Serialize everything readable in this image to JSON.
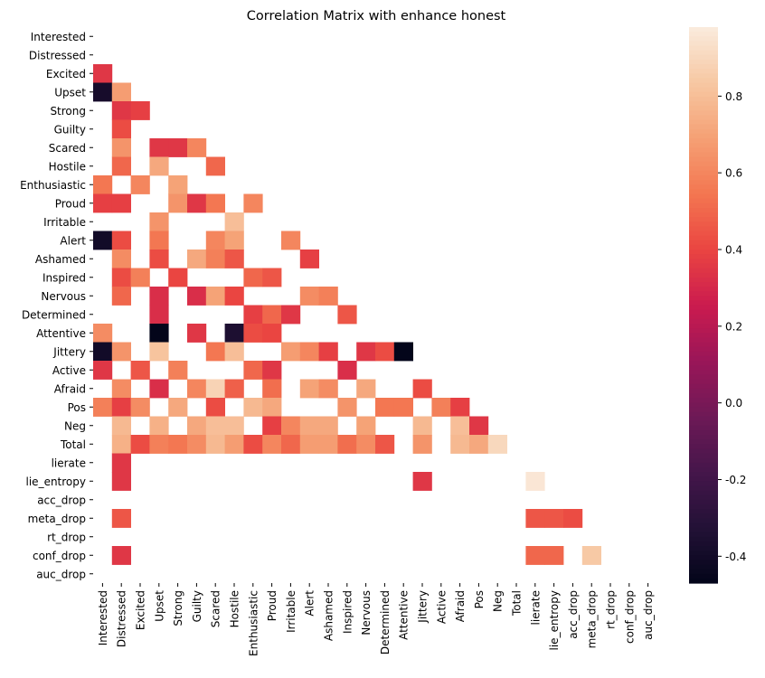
{
  "chart_data": {
    "type": "heatmap",
    "title": "Correlation Matrix with enhance honest",
    "xlabel": "",
    "ylabel": "",
    "labels": [
      "Interested",
      "Distressed",
      "Excited",
      "Upset",
      "Strong",
      "Guilty",
      "Scared",
      "Hostile",
      "Enthusiastic",
      "Proud",
      "Irritable",
      "Alert",
      "Ashamed",
      "Inspired",
      "Nervous",
      "Determined",
      "Attentive",
      "Jittery",
      "Active",
      "Afraid",
      "Pos",
      "Neg",
      "Total",
      "lierate",
      "lie_entropy",
      "acc_drop",
      "meta_drop",
      "rt_drop",
      "conf_drop",
      "auc_drop"
    ],
    "masked": "upper triangle and diagonal; only significant correlations shown",
    "colorscale": "rocket",
    "vmin": -0.47,
    "vmax": 0.98,
    "colorbar_ticks": [
      -0.4,
      -0.2,
      0.0,
      0.2,
      0.4,
      0.6,
      0.8
    ],
    "cells": [
      {
        "row": "Excited",
        "col": "Interested",
        "value": 0.35
      },
      {
        "row": "Upset",
        "col": "Interested",
        "value": -0.38
      },
      {
        "row": "Upset",
        "col": "Distressed",
        "value": 0.68
      },
      {
        "row": "Strong",
        "col": "Distressed",
        "value": 0.35
      },
      {
        "row": "Strong",
        "col": "Excited",
        "value": 0.38
      },
      {
        "row": "Guilty",
        "col": "Distressed",
        "value": 0.42
      },
      {
        "row": "Scared",
        "col": "Distressed",
        "value": 0.65
      },
      {
        "row": "Scared",
        "col": "Upset",
        "value": 0.35
      },
      {
        "row": "Scared",
        "col": "Strong",
        "value": 0.35
      },
      {
        "row": "Scared",
        "col": "Guilty",
        "value": 0.6
      },
      {
        "row": "Hostile",
        "col": "Distressed",
        "value": 0.5
      },
      {
        "row": "Hostile",
        "col": "Upset",
        "value": 0.72
      },
      {
        "row": "Hostile",
        "col": "Scared",
        "value": 0.5
      },
      {
        "row": "Enthusiastic",
        "col": "Interested",
        "value": 0.55
      },
      {
        "row": "Enthusiastic",
        "col": "Excited",
        "value": 0.6
      },
      {
        "row": "Enthusiastic",
        "col": "Strong",
        "value": 0.7
      },
      {
        "row": "Proud",
        "col": "Interested",
        "value": 0.38
      },
      {
        "row": "Proud",
        "col": "Distressed",
        "value": 0.38
      },
      {
        "row": "Proud",
        "col": "Strong",
        "value": 0.65
      },
      {
        "row": "Proud",
        "col": "Guilty",
        "value": 0.35
      },
      {
        "row": "Proud",
        "col": "Scared",
        "value": 0.55
      },
      {
        "row": "Proud",
        "col": "Enthusiastic",
        "value": 0.6
      },
      {
        "row": "Irritable",
        "col": "Upset",
        "value": 0.65
      },
      {
        "row": "Irritable",
        "col": "Hostile",
        "value": 0.8
      },
      {
        "row": "Alert",
        "col": "Interested",
        "value": -0.4
      },
      {
        "row": "Alert",
        "col": "Distressed",
        "value": 0.42
      },
      {
        "row": "Alert",
        "col": "Upset",
        "value": 0.55
      },
      {
        "row": "Alert",
        "col": "Scared",
        "value": 0.6
      },
      {
        "row": "Alert",
        "col": "Hostile",
        "value": 0.7
      },
      {
        "row": "Alert",
        "col": "Irritable",
        "value": 0.6
      },
      {
        "row": "Ashamed",
        "col": "Distressed",
        "value": 0.62
      },
      {
        "row": "Ashamed",
        "col": "Upset",
        "value": 0.42
      },
      {
        "row": "Ashamed",
        "col": "Guilty",
        "value": 0.72
      },
      {
        "row": "Ashamed",
        "col": "Scared",
        "value": 0.58
      },
      {
        "row": "Ashamed",
        "col": "Hostile",
        "value": 0.45
      },
      {
        "row": "Ashamed",
        "col": "Alert",
        "value": 0.38
      },
      {
        "row": "Inspired",
        "col": "Distressed",
        "value": 0.42
      },
      {
        "row": "Inspired",
        "col": "Excited",
        "value": 0.58
      },
      {
        "row": "Inspired",
        "col": "Strong",
        "value": 0.4
      },
      {
        "row": "Inspired",
        "col": "Enthusiastic",
        "value": 0.5
      },
      {
        "row": "Inspired",
        "col": "Proud",
        "value": 0.45
      },
      {
        "row": "Nervous",
        "col": "Distressed",
        "value": 0.5
      },
      {
        "row": "Nervous",
        "col": "Upset",
        "value": 0.32
      },
      {
        "row": "Nervous",
        "col": "Guilty",
        "value": 0.32
      },
      {
        "row": "Nervous",
        "col": "Scared",
        "value": 0.7
      },
      {
        "row": "Nervous",
        "col": "Hostile",
        "value": 0.4
      },
      {
        "row": "Nervous",
        "col": "Alert",
        "value": 0.62
      },
      {
        "row": "Nervous",
        "col": "Ashamed",
        "value": 0.58
      },
      {
        "row": "Determined",
        "col": "Upset",
        "value": 0.32
      },
      {
        "row": "Determined",
        "col": "Enthusiastic",
        "value": 0.38
      },
      {
        "row": "Determined",
        "col": "Proud",
        "value": 0.5
      },
      {
        "row": "Determined",
        "col": "Irritable",
        "value": 0.35
      },
      {
        "row": "Determined",
        "col": "Inspired",
        "value": 0.45
      },
      {
        "row": "Attentive",
        "col": "Interested",
        "value": 0.62
      },
      {
        "row": "Attentive",
        "col": "Upset",
        "value": -0.47
      },
      {
        "row": "Attentive",
        "col": "Guilty",
        "value": 0.35
      },
      {
        "row": "Attentive",
        "col": "Hostile",
        "value": -0.35
      },
      {
        "row": "Attentive",
        "col": "Enthusiastic",
        "value": 0.42
      },
      {
        "row": "Attentive",
        "col": "Proud",
        "value": 0.4
      },
      {
        "row": "Jittery",
        "col": "Interested",
        "value": -0.4
      },
      {
        "row": "Jittery",
        "col": "Distressed",
        "value": 0.65
      },
      {
        "row": "Jittery",
        "col": "Upset",
        "value": 0.82
      },
      {
        "row": "Jittery",
        "col": "Scared",
        "value": 0.55
      },
      {
        "row": "Jittery",
        "col": "Hostile",
        "value": 0.8
      },
      {
        "row": "Jittery",
        "col": "Irritable",
        "value": 0.68
      },
      {
        "row": "Jittery",
        "col": "Alert",
        "value": 0.6
      },
      {
        "row": "Jittery",
        "col": "Ashamed",
        "value": 0.38
      },
      {
        "row": "Jittery",
        "col": "Nervous",
        "value": 0.35
      },
      {
        "row": "Jittery",
        "col": "Determined",
        "value": 0.42
      },
      {
        "row": "Jittery",
        "col": "Attentive",
        "value": -0.47
      },
      {
        "row": "Active",
        "col": "Interested",
        "value": 0.35
      },
      {
        "row": "Active",
        "col": "Excited",
        "value": 0.45
      },
      {
        "row": "Active",
        "col": "Strong",
        "value": 0.58
      },
      {
        "row": "Active",
        "col": "Enthusiastic",
        "value": 0.5
      },
      {
        "row": "Active",
        "col": "Proud",
        "value": 0.35
      },
      {
        "row": "Active",
        "col": "Inspired",
        "value": 0.32
      },
      {
        "row": "Afraid",
        "col": "Distressed",
        "value": 0.62
      },
      {
        "row": "Afraid",
        "col": "Upset",
        "value": 0.32
      },
      {
        "row": "Afraid",
        "col": "Guilty",
        "value": 0.6
      },
      {
        "row": "Afraid",
        "col": "Scared",
        "value": 0.88
      },
      {
        "row": "Afraid",
        "col": "Hostile",
        "value": 0.48
      },
      {
        "row": "Afraid",
        "col": "Proud",
        "value": 0.52
      },
      {
        "row": "Afraid",
        "col": "Alert",
        "value": 0.7
      },
      {
        "row": "Afraid",
        "col": "Ashamed",
        "value": 0.62
      },
      {
        "row": "Afraid",
        "col": "Nervous",
        "value": 0.72
      },
      {
        "row": "Afraid",
        "col": "Jittery",
        "value": 0.42
      },
      {
        "row": "Pos",
        "col": "Interested",
        "value": 0.58
      },
      {
        "row": "Pos",
        "col": "Distressed",
        "value": 0.38
      },
      {
        "row": "Pos",
        "col": "Excited",
        "value": 0.62
      },
      {
        "row": "Pos",
        "col": "Strong",
        "value": 0.72
      },
      {
        "row": "Pos",
        "col": "Scared",
        "value": 0.42
      },
      {
        "row": "Pos",
        "col": "Enthusiastic",
        "value": 0.78
      },
      {
        "row": "Pos",
        "col": "Proud",
        "value": 0.72
      },
      {
        "row": "Pos",
        "col": "Inspired",
        "value": 0.65
      },
      {
        "row": "Pos",
        "col": "Determined",
        "value": 0.55
      },
      {
        "row": "Pos",
        "col": "Attentive",
        "value": 0.55
      },
      {
        "row": "Pos",
        "col": "Active",
        "value": 0.58
      },
      {
        "row": "Pos",
        "col": "Afraid",
        "value": 0.38
      },
      {
        "row": "Neg",
        "col": "Distressed",
        "value": 0.78
      },
      {
        "row": "Neg",
        "col": "Upset",
        "value": 0.75
      },
      {
        "row": "Neg",
        "col": "Guilty",
        "value": 0.72
      },
      {
        "row": "Neg",
        "col": "Scared",
        "value": 0.8
      },
      {
        "row": "Neg",
        "col": "Hostile",
        "value": 0.8
      },
      {
        "row": "Neg",
        "col": "Proud",
        "value": 0.38
      },
      {
        "row": "Neg",
        "col": "Irritable",
        "value": 0.6
      },
      {
        "row": "Neg",
        "col": "Alert",
        "value": 0.72
      },
      {
        "row": "Neg",
        "col": "Ashamed",
        "value": 0.72
      },
      {
        "row": "Neg",
        "col": "Nervous",
        "value": 0.7
      },
      {
        "row": "Neg",
        "col": "Jittery",
        "value": 0.78
      },
      {
        "row": "Neg",
        "col": "Afraid",
        "value": 0.8
      },
      {
        "row": "Neg",
        "col": "Pos",
        "value": 0.35
      },
      {
        "row": "Total",
        "col": "Distressed",
        "value": 0.75
      },
      {
        "row": "Total",
        "col": "Excited",
        "value": 0.42
      },
      {
        "row": "Total",
        "col": "Upset",
        "value": 0.58
      },
      {
        "row": "Total",
        "col": "Strong",
        "value": 0.55
      },
      {
        "row": "Total",
        "col": "Guilty",
        "value": 0.62
      },
      {
        "row": "Total",
        "col": "Scared",
        "value": 0.78
      },
      {
        "row": "Total",
        "col": "Hostile",
        "value": 0.68
      },
      {
        "row": "Total",
        "col": "Enthusiastic",
        "value": 0.42
      },
      {
        "row": "Total",
        "col": "Proud",
        "value": 0.6
      },
      {
        "row": "Total",
        "col": "Irritable",
        "value": 0.5
      },
      {
        "row": "Total",
        "col": "Alert",
        "value": 0.68
      },
      {
        "row": "Total",
        "col": "Ashamed",
        "value": 0.68
      },
      {
        "row": "Total",
        "col": "Inspired",
        "value": 0.52
      },
      {
        "row": "Total",
        "col": "Nervous",
        "value": 0.62
      },
      {
        "row": "Total",
        "col": "Determined",
        "value": 0.45
      },
      {
        "row": "Total",
        "col": "Jittery",
        "value": 0.65
      },
      {
        "row": "Total",
        "col": "Afraid",
        "value": 0.78
      },
      {
        "row": "Total",
        "col": "Pos",
        "value": 0.72
      },
      {
        "row": "Total",
        "col": "Neg",
        "value": 0.9
      },
      {
        "row": "lierate",
        "col": "Distressed",
        "value": 0.35
      },
      {
        "row": "lie_entropy",
        "col": "Distressed",
        "value": 0.35
      },
      {
        "row": "lie_entropy",
        "col": "Jittery",
        "value": 0.35
      },
      {
        "row": "lie_entropy",
        "col": "lierate",
        "value": 0.96
      },
      {
        "row": "meta_drop",
        "col": "Distressed",
        "value": 0.45
      },
      {
        "row": "meta_drop",
        "col": "lierate",
        "value": 0.45
      },
      {
        "row": "meta_drop",
        "col": "lie_entropy",
        "value": 0.45
      },
      {
        "row": "meta_drop",
        "col": "acc_drop",
        "value": 0.42
      },
      {
        "row": "conf_drop",
        "col": "Distressed",
        "value": 0.35
      },
      {
        "row": "conf_drop",
        "col": "lierate",
        "value": 0.5
      },
      {
        "row": "conf_drop",
        "col": "lie_entropy",
        "value": 0.5
      },
      {
        "row": "conf_drop",
        "col": "meta_drop",
        "value": 0.84
      }
    ]
  }
}
